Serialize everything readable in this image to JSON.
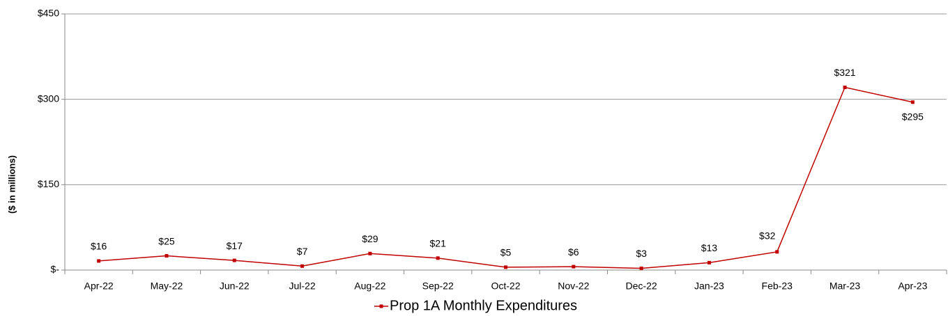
{
  "chart_data": {
    "type": "line",
    "y_label": "($ in millions)",
    "categories": [
      "Apr-22",
      "May-22",
      "Jun-22",
      "Jul-22",
      "Aug-22",
      "Sep-22",
      "Oct-22",
      "Nov-22",
      "Dec-22",
      "Jan-23",
      "Feb-23",
      "Mar-23",
      "Apr-23"
    ],
    "series": [
      {
        "name": "Prop 1A Monthly Expenditures",
        "color": "#c00000",
        "values": [
          16,
          25,
          17,
          7,
          29,
          21,
          5,
          6,
          3,
          13,
          32,
          321,
          295
        ],
        "value_labels": [
          "$16",
          "$25",
          "$17",
          "$7",
          "$29",
          "$21",
          "$5",
          "$6",
          "$3",
          "$13",
          "$32",
          "$321",
          "$295"
        ]
      }
    ],
    "ylim": [
      0,
      450
    ],
    "yticks": [
      {
        "value": 0,
        "label": "$-"
      },
      {
        "value": 150,
        "label": "$150"
      },
      {
        "value": 300,
        "label": "$300"
      },
      {
        "value": 450,
        "label": "$450"
      }
    ],
    "grid": true,
    "legend": "bottom"
  }
}
